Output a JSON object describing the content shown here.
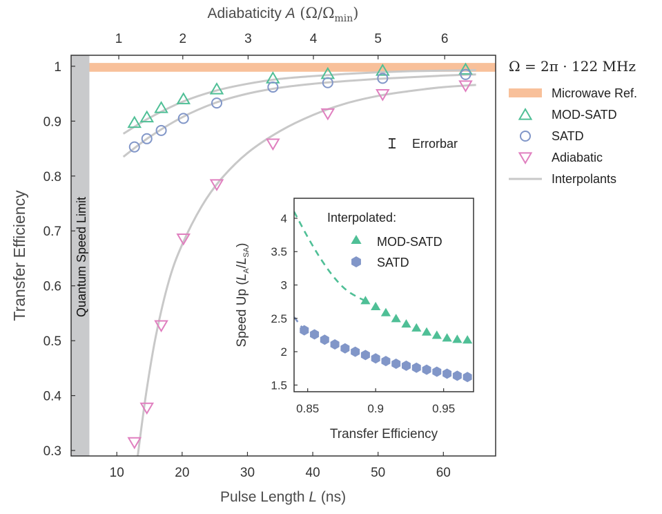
{
  "chart_data": [
    {
      "type": "scatter",
      "ylabel": "Transfer Efficiency",
      "xlabel": {
        "pre": "Pulse Length ",
        "var": "L",
        "post": " (ns)"
      },
      "xlim": [
        3,
        68
      ],
      "ylim": [
        0.29,
        1.02
      ],
      "xticks": [
        "10",
        "20",
        "30",
        "40",
        "50",
        "60"
      ],
      "xtick_values": [
        10,
        20,
        30,
        40,
        50,
        60
      ],
      "yticks": [
        "0.3",
        "0.4",
        "0.5",
        "0.6",
        "0.7",
        "0.8",
        "0.9",
        "1"
      ],
      "ytick_values": [
        0.3,
        0.4,
        0.5,
        0.6,
        0.7,
        0.8,
        0.9,
        1.0
      ],
      "top_axis": {
        "label": {
          "pre": "Adiabaticity ",
          "var": "A",
          "post": " (Ω/Ω",
          "sub": "min",
          "close": ")"
        },
        "ticks": [
          "1",
          "2",
          "3",
          "4",
          "5",
          "6"
        ],
        "tick_positions_L": [
          10.3,
          20.1,
          30.1,
          40.1,
          50.0,
          60.2
        ]
      },
      "quantum_speed_limit": {
        "label": "Quantum Speed Limit",
        "x_max": 5.8
      },
      "microwave_ref": {
        "y": 0.998,
        "band": [
          0.99,
          1.006
        ],
        "color": "#f8c09a"
      },
      "omega_label": "Ω = 2π · 122 MHz",
      "errorbar_label": "Errorbar",
      "series": [
        {
          "name": "MOD-SATD",
          "marker": "triangle-up",
          "color": "#4fbf96",
          "x": [
            12.7,
            14.6,
            16.8,
            20.2,
            25.3,
            33.9,
            42.3,
            50.7,
            63.4
          ],
          "y": [
            0.896,
            0.906,
            0.923,
            0.939,
            0.957,
            0.977,
            0.985,
            0.991,
            0.993
          ]
        },
        {
          "name": "SATD",
          "marker": "circle",
          "color": "#8196c8",
          "x": [
            12.7,
            14.6,
            16.8,
            20.2,
            25.3,
            33.9,
            42.3,
            50.7,
            63.4
          ],
          "y": [
            0.853,
            0.868,
            0.883,
            0.905,
            0.933,
            0.962,
            0.97,
            0.978,
            0.985
          ]
        },
        {
          "name": "Adiabatic",
          "marker": "triangle-down",
          "color": "#e07fbf",
          "x": [
            12.7,
            14.6,
            16.8,
            20.2,
            25.3,
            33.9,
            42.3,
            50.7,
            63.4
          ],
          "y": [
            0.316,
            0.379,
            0.529,
            0.687,
            0.786,
            0.86,
            0.915,
            0.95,
            0.966
          ]
        }
      ],
      "interpolants": {
        "name": "Interpolants",
        "color": "#c8c8c8",
        "curves": [
          {
            "x": [
              11,
              15,
              20,
              25,
              30,
              35,
              40,
              45,
              50,
              55,
              60,
              65
            ],
            "y": [
              0.877,
              0.906,
              0.935,
              0.955,
              0.968,
              0.977,
              0.982,
              0.986,
              0.989,
              0.991,
              0.992,
              0.993
            ]
          },
          {
            "x": [
              11,
              15,
              20,
              25,
              30,
              35,
              40,
              45,
              50,
              55,
              60,
              65
            ],
            "y": [
              0.835,
              0.871,
              0.907,
              0.933,
              0.95,
              0.961,
              0.968,
              0.973,
              0.977,
              0.98,
              0.983,
              0.985
            ]
          },
          {
            "x": [
              13.2,
              14.5,
              16,
              18,
              20,
              23,
              26,
              30,
              35,
              40,
              45,
              50,
              55,
              60,
              65
            ],
            "y": [
              0.29,
              0.405,
              0.51,
              0.61,
              0.675,
              0.745,
              0.795,
              0.842,
              0.882,
              0.911,
              0.932,
              0.946,
              0.955,
              0.962,
              0.966
            ]
          }
        ]
      },
      "legend": {
        "placement": "outside-right",
        "entries": [
          "Microwave Ref.",
          "MOD-SATD",
          "SATD",
          "Adiabatic",
          "Interpolants"
        ]
      }
    },
    {
      "type": "scatter",
      "inset": true,
      "xlabel": "Transfer Efficiency",
      "ylabel": {
        "pre": "Speed Up (",
        "a": "L",
        "a_sub": "A",
        "slash": "/",
        "b": "L",
        "b_sub": "SA",
        "post": ")"
      },
      "xlim": [
        0.84,
        0.972
      ],
      "ylim": [
        1.4,
        4.3
      ],
      "xticks": [
        "0.85",
        "0.9",
        "0.95"
      ],
      "xtick_values": [
        0.85,
        0.9,
        0.95
      ],
      "yticks": [
        "1.5",
        "2",
        "2.5",
        "3",
        "3.5",
        "4"
      ],
      "ytick_values": [
        1.5,
        2.0,
        2.5,
        3.0,
        3.5,
        4.0
      ],
      "legend_title": "Interpolated:",
      "series": [
        {
          "name": "MOD-SATD",
          "marker": "filled-triangle",
          "color": "#4fbf96",
          "x": [
            0.8925,
            0.9,
            0.9075,
            0.915,
            0.9225,
            0.93,
            0.9375,
            0.945,
            0.9525,
            0.96,
            0.9675
          ],
          "y": [
            2.76,
            2.67,
            2.58,
            2.49,
            2.41,
            2.35,
            2.29,
            2.24,
            2.2,
            2.18,
            2.17
          ],
          "dashed": {
            "x": [
              0.84,
              0.85,
              0.86,
              0.87,
              0.88,
              0.8925
            ],
            "y": [
              4.1,
              3.72,
              3.38,
              3.1,
              2.9,
              2.76
            ]
          }
        },
        {
          "name": "SATD",
          "marker": "filled-hexagon",
          "color": "#8196c8",
          "x": [
            0.8475,
            0.855,
            0.8625,
            0.87,
            0.8775,
            0.885,
            0.8925,
            0.9,
            0.9075,
            0.915,
            0.9225,
            0.93,
            0.9375,
            0.945,
            0.9525,
            0.96,
            0.9675
          ],
          "y": [
            2.32,
            2.26,
            2.18,
            2.11,
            2.05,
            2.0,
            1.95,
            1.9,
            1.86,
            1.82,
            1.79,
            1.76,
            1.73,
            1.7,
            1.67,
            1.64,
            1.62
          ],
          "dashed": {
            "x": [
              0.84,
              0.8475
            ],
            "y": [
              2.52,
              2.32
            ]
          }
        }
      ]
    }
  ]
}
